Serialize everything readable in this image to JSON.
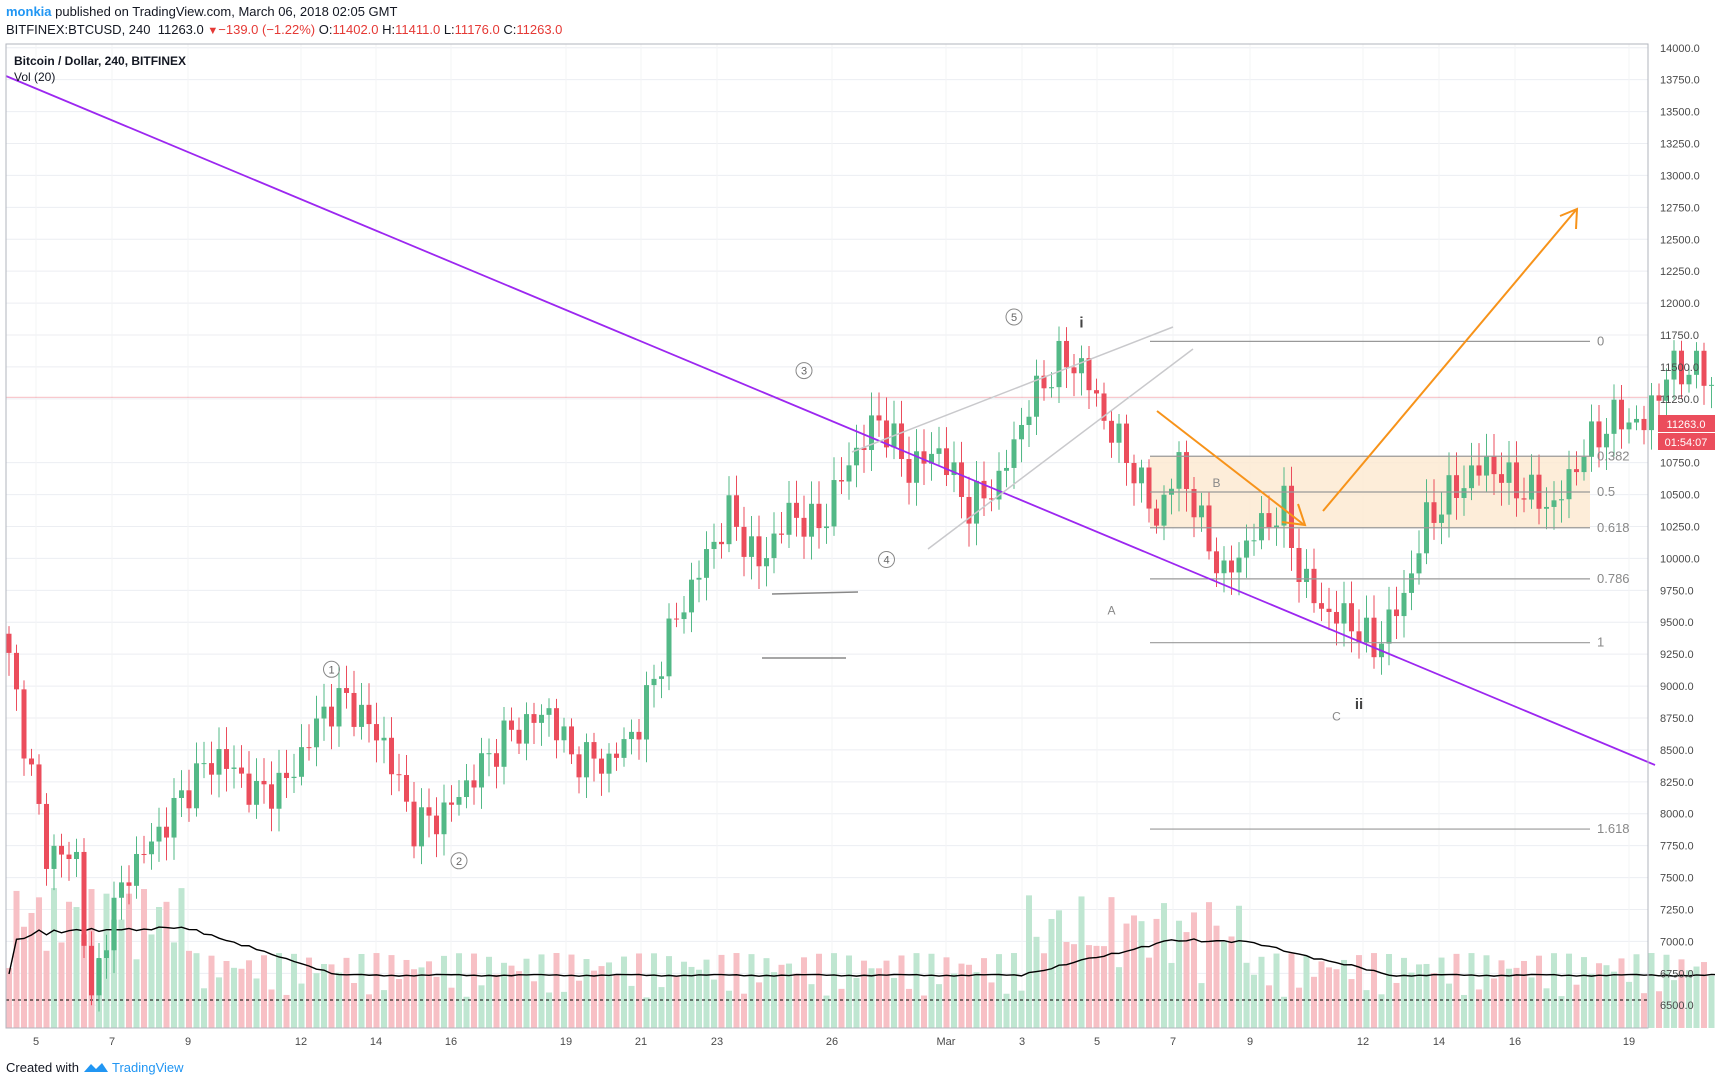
{
  "header": {
    "user": "monkia",
    "published": "published on TradingView.com, March 06, 2018 02:05 GMT",
    "symbol": "BITFINEX:BTCUSD, 240",
    "price": "11263.0",
    "change": "−139.0 (−1.22%)",
    "o_label": "O:",
    "o": "11402.0",
    "h_label": "H:",
    "h": "11411.0",
    "l_label": "L:",
    "l": "11176.0",
    "c_label": "C:",
    "c": "11263.0"
  },
  "legend": {
    "title": "Bitcoin / Dollar, 240, BITFINEX",
    "vol": "Vol (20)"
  },
  "price_badge": {
    "price": "11263.0",
    "countdown": "01:54:07"
  },
  "footer": {
    "created": "Created with",
    "brand": "TradingView"
  },
  "colors": {
    "up": "#53b987",
    "down": "#eb4d5c",
    "trendline": "#9c27f0",
    "projection": "#f7931a",
    "zone": "#fde9cf",
    "fib": "#999999"
  },
  "chart_data": {
    "type": "candlestick",
    "title": "Bitcoin / Dollar, 240, BITFINEX",
    "ylim": [
      6400,
      14100
    ],
    "y_ticks": [
      "14000.0",
      "13750.0",
      "13500.0",
      "13250.0",
      "13000.0",
      "12750.0",
      "12500.0",
      "12250.0",
      "12000.0",
      "11750.0",
      "11500.0",
      "11250.0",
      "10750.0",
      "10500.0",
      "10250.0",
      "10000.0",
      "9750.0",
      "9500.0",
      "9250.0",
      "9000.0",
      "8750.0",
      "8500.0",
      "8250.0",
      "8000.0",
      "7750.0",
      "7500.0",
      "7250.0",
      "7000.0",
      "6750.0",
      "6500.0"
    ],
    "x_ticks": [
      "5",
      "7",
      "9",
      "12",
      "14",
      "16",
      "19",
      "21",
      "23",
      "26",
      "Mar",
      "3",
      "5",
      "7",
      "9",
      "12",
      "14",
      "16",
      "19"
    ],
    "last_price": 11263.0,
    "price_keypoints": [
      [
        0,
        9200
      ],
      [
        5,
        7700
      ],
      [
        9,
        7650
      ],
      [
        11,
        6500
      ],
      [
        13,
        7100
      ],
      [
        16,
        7550
      ],
      [
        20,
        7850
      ],
      [
        25,
        8300
      ],
      [
        28,
        8450
      ],
      [
        33,
        8150
      ],
      [
        37,
        8250
      ],
      [
        42,
        8800
      ],
      [
        45,
        8900
      ],
      [
        50,
        8550
      ],
      [
        54,
        7900
      ],
      [
        58,
        8000
      ],
      [
        62,
        8300
      ],
      [
        66,
        8600
      ],
      [
        72,
        8800
      ],
      [
        75,
        8450
      ],
      [
        80,
        8400
      ],
      [
        84,
        8700
      ],
      [
        88,
        9400
      ],
      [
        92,
        9900
      ],
      [
        96,
        10350
      ],
      [
        100,
        9950
      ],
      [
        104,
        10350
      ],
      [
        108,
        10250
      ],
      [
        112,
        10750
      ],
      [
        116,
        11100
      ],
      [
        120,
        10700
      ],
      [
        124,
        10850
      ],
      [
        128,
        10400
      ],
      [
        132,
        10600
      ],
      [
        136,
        11200
      ],
      [
        140,
        11550
      ],
      [
        143,
        11500
      ],
      [
        146,
        11100
      ],
      [
        150,
        10700
      ],
      [
        153,
        10300
      ],
      [
        156,
        10750
      ],
      [
        159,
        10250
      ],
      [
        162,
        9850
      ],
      [
        166,
        10200
      ],
      [
        170,
        10400
      ],
      [
        172,
        9900
      ],
      [
        175,
        9600
      ],
      [
        179,
        9500
      ],
      [
        182,
        9300
      ],
      [
        186,
        9700
      ],
      [
        189,
        10300
      ],
      [
        193,
        10550
      ],
      [
        197,
        10750
      ],
      [
        200,
        10600
      ],
      [
        203,
        10500
      ],
      [
        206,
        10400
      ],
      [
        210,
        10850
      ],
      [
        214,
        11100
      ],
      [
        218,
        11050
      ],
      [
        221,
        11450
      ],
      [
        225,
        11500
      ],
      [
        229,
        11200
      ],
      [
        232,
        11300
      ],
      [
        235,
        11600
      ],
      [
        238,
        11550
      ],
      [
        239,
        11263
      ]
    ],
    "volume_ma_period": 20,
    "series": [
      {
        "name": "Vol (20)",
        "type": "volume"
      }
    ],
    "annotations": [
      {
        "text": "①",
        "x": 43,
        "y": 9100
      },
      {
        "text": "②",
        "x": 60,
        "y": 7600
      },
      {
        "text": "③",
        "x": 106,
        "y": 11440
      },
      {
        "text": "④",
        "x": 117,
        "y": 9960
      },
      {
        "text": "⑤",
        "x": 134,
        "y": 11860
      },
      {
        "text": "i",
        "x": 143,
        "y": 11810
      },
      {
        "text": "A",
        "x": 147,
        "y": 9560
      },
      {
        "text": "B",
        "x": 161,
        "y": 10560
      },
      {
        "text": "C",
        "x": 177,
        "y": 8730
      },
      {
        "text": "ii",
        "x": 180,
        "y": 8820
      },
      {
        "text": "①",
        "x": 239,
        "y": 11830
      },
      {
        "text": "②",
        "x": 268,
        "y": 10280
      },
      {
        "text": "③",
        "x": 335,
        "y": 13030
      }
    ],
    "fib_levels": [
      {
        "label": "0",
        "price": 11700
      },
      {
        "label": "0.382",
        "price": 10800
      },
      {
        "label": "0.5",
        "price": 10520
      },
      {
        "label": "0.618",
        "price": 10240
      },
      {
        "label": "0.786",
        "price": 9840
      },
      {
        "label": "1",
        "price": 9340
      },
      {
        "label": "1.618",
        "price": 7880
      }
    ]
  }
}
